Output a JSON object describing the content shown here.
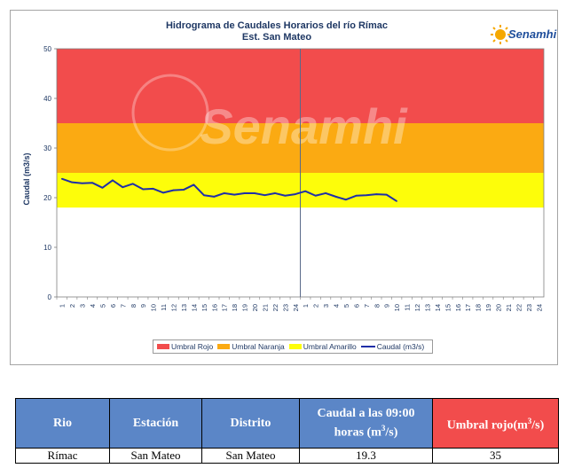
{
  "chart_data": {
    "type": "line",
    "title": "Hidrograma de Caudales Horarios del río Rímac",
    "subtitle": "Est. San Mateo",
    "xlabel": "",
    "ylabel": "Caudal  (m3/s)",
    "ylim": [
      0,
      50
    ],
    "yticks": [
      "0",
      "10",
      "20",
      "30",
      "40",
      "50"
    ],
    "x_tick_labels": [
      "1",
      "2",
      "3",
      "4",
      "5",
      "6",
      "7",
      "8",
      "9",
      "10",
      "11",
      "12",
      "13",
      "14",
      "15",
      "16",
      "17",
      "18",
      "19",
      "20",
      "21",
      "22",
      "23",
      "24",
      "1",
      "2",
      "3",
      "4",
      "5",
      "6",
      "7",
      "8",
      "9",
      "10",
      "11",
      "12",
      "13",
      "14",
      "15",
      "16",
      "17",
      "18",
      "19",
      "20",
      "21",
      "22",
      "23",
      "24"
    ],
    "thresholds": [
      {
        "name": "Umbral Rojo",
        "from": 35,
        "to": 50,
        "color": "#f24c4c"
      },
      {
        "name": "Umbral Naranja",
        "from": 25,
        "to": 35,
        "color": "#fbaa12"
      },
      {
        "name": "Umbral Amarillo",
        "from": 18,
        "to": 25,
        "color": "#fdfd0a"
      }
    ],
    "series": [
      {
        "name": "Caudal (m3/s)",
        "color": "#1f2fa8",
        "values": [
          23.8,
          23.1,
          22.9,
          23.0,
          22.0,
          23.5,
          22.1,
          22.8,
          21.7,
          21.8,
          21.0,
          21.5,
          21.6,
          22.6,
          20.5,
          20.2,
          20.9,
          20.6,
          20.9,
          20.9,
          20.5,
          20.9,
          20.4,
          20.7,
          21.3,
          20.4,
          20.9,
          20.2,
          19.6,
          20.4,
          20.5,
          20.7,
          20.6,
          19.3
        ]
      }
    ],
    "legend_position": "bottom",
    "grid": false
  },
  "brand": {
    "name": "Senamhi",
    "watermark": "Senamhi"
  },
  "legend": [
    {
      "label": "Umbral Rojo",
      "color": "#f24c4c",
      "kind": "swatch"
    },
    {
      "label": "Umbral Naranja",
      "color": "#fbaa12",
      "kind": "swatch"
    },
    {
      "label": "Umbral Amarillo",
      "color": "#fdfd0a",
      "kind": "swatch"
    },
    {
      "label": "Caudal (m3/s)",
      "color": "#1f2fa8",
      "kind": "line"
    }
  ],
  "table": {
    "headers": {
      "rio": "Rio",
      "estacion": "Estación",
      "distrito": "Distrito",
      "caudal": "Caudal a las 09:00 horas (m3/s)",
      "umbral": "Umbral rojo(m3/s)"
    },
    "row": {
      "rio": "Rímac",
      "estacion": "San Mateo",
      "distrito": "San Mateo",
      "caudal": "19.3",
      "umbral": "35"
    }
  }
}
